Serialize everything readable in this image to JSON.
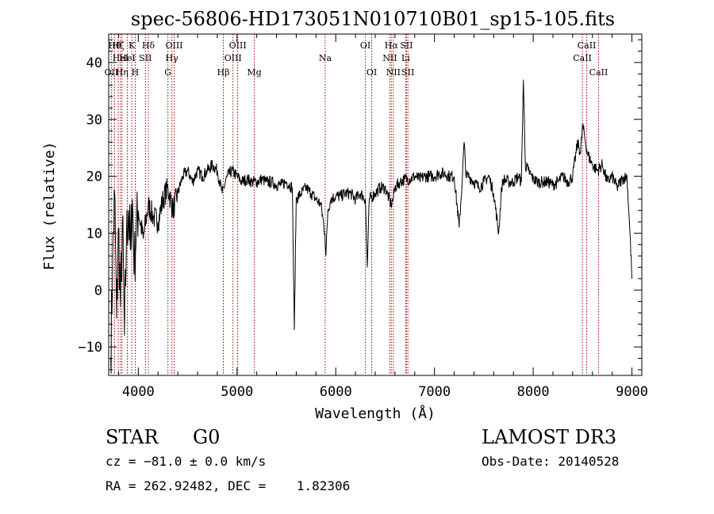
{
  "chart_data": {
    "type": "line",
    "title": "spec-56806-HD173051N010710B01_sp15-105.fits",
    "xlabel": "Wavelength (Å)",
    "ylabel": "Flux (relative)",
    "xlim": [
      3700,
      9100
    ],
    "ylim": [
      -15,
      45
    ],
    "xticks": [
      4000,
      5000,
      6000,
      7000,
      8000,
      9000
    ],
    "yticks": [
      -10,
      0,
      10,
      20,
      30,
      40
    ],
    "grid": false,
    "series": [
      {
        "name": "flux",
        "points": [
          [
            3720,
            -12
          ],
          [
            3740,
            5
          ],
          [
            3760,
            17
          ],
          [
            3780,
            -5
          ],
          [
            3800,
            11
          ],
          [
            3820,
            -3
          ],
          [
            3840,
            12
          ],
          [
            3860,
            -8
          ],
          [
            3880,
            9
          ],
          [
            3900,
            14
          ],
          [
            3920,
            7
          ],
          [
            3940,
            16
          ],
          [
            3960,
            4
          ],
          [
            3980,
            11
          ],
          [
            4000,
            14
          ],
          [
            4050,
            9
          ],
          [
            4100,
            15
          ],
          [
            4150,
            13
          ],
          [
            4200,
            12
          ],
          [
            4250,
            16
          ],
          [
            4300,
            18
          ],
          [
            4350,
            14
          ],
          [
            4400,
            17
          ],
          [
            4450,
            20
          ],
          [
            4500,
            21
          ],
          [
            4550,
            19
          ],
          [
            4600,
            21
          ],
          [
            4650,
            20
          ],
          [
            4700,
            21
          ],
          [
            4750,
            22
          ],
          [
            4800,
            21
          ],
          [
            4850,
            17
          ],
          [
            4900,
            20
          ],
          [
            4950,
            21
          ],
          [
            5000,
            20
          ],
          [
            5050,
            19
          ],
          [
            5100,
            19.5
          ],
          [
            5150,
            19
          ],
          [
            5200,
            19
          ],
          [
            5250,
            19.5
          ],
          [
            5300,
            19
          ],
          [
            5350,
            19
          ],
          [
            5400,
            18.5
          ],
          [
            5450,
            18.5
          ],
          [
            5500,
            19
          ],
          [
            5560,
            18
          ],
          [
            5580,
            -7
          ],
          [
            5600,
            16
          ],
          [
            5650,
            17
          ],
          [
            5700,
            18
          ],
          [
            5750,
            17
          ],
          [
            5800,
            16
          ],
          [
            5850,
            15
          ],
          [
            5890,
            10
          ],
          [
            5900,
            6
          ],
          [
            5920,
            14
          ],
          [
            5950,
            16
          ],
          [
            6000,
            16.5
          ],
          [
            6050,
            16.5
          ],
          [
            6100,
            17
          ],
          [
            6150,
            17
          ],
          [
            6200,
            16
          ],
          [
            6250,
            17
          ],
          [
            6300,
            16
          ],
          [
            6320,
            4
          ],
          [
            6340,
            16
          ],
          [
            6400,
            17
          ],
          [
            6450,
            18
          ],
          [
            6500,
            18
          ],
          [
            6560,
            15
          ],
          [
            6580,
            16
          ],
          [
            6600,
            18
          ],
          [
            6650,
            19
          ],
          [
            6700,
            19.5
          ],
          [
            6750,
            19.5
          ],
          [
            6800,
            20
          ],
          [
            6850,
            19.5
          ],
          [
            6900,
            20
          ],
          [
            6950,
            20
          ],
          [
            7000,
            20
          ],
          [
            7050,
            20.5
          ],
          [
            7100,
            20.5
          ],
          [
            7150,
            20
          ],
          [
            7200,
            20
          ],
          [
            7250,
            11
          ],
          [
            7280,
            19
          ],
          [
            7300,
            26
          ],
          [
            7320,
            20
          ],
          [
            7350,
            20
          ],
          [
            7400,
            19
          ],
          [
            7450,
            18
          ],
          [
            7500,
            19
          ],
          [
            7550,
            20
          ],
          [
            7600,
            17
          ],
          [
            7650,
            10
          ],
          [
            7680,
            18
          ],
          [
            7700,
            19.5
          ],
          [
            7750,
            19
          ],
          [
            7800,
            19
          ],
          [
            7850,
            20
          ],
          [
            7880,
            19
          ],
          [
            7900,
            37
          ],
          [
            7920,
            22
          ],
          [
            7950,
            21
          ],
          [
            8000,
            19.5
          ],
          [
            8050,
            19
          ],
          [
            8100,
            19
          ],
          [
            8150,
            19
          ],
          [
            8200,
            18.5
          ],
          [
            8250,
            19
          ],
          [
            8300,
            20
          ],
          [
            8350,
            19
          ],
          [
            8400,
            20
          ],
          [
            8450,
            26
          ],
          [
            8480,
            24
          ],
          [
            8500,
            29
          ],
          [
            8520,
            27
          ],
          [
            8550,
            24
          ],
          [
            8600,
            22
          ],
          [
            8650,
            21
          ],
          [
            8700,
            22
          ],
          [
            8750,
            19
          ],
          [
            8800,
            20
          ],
          [
            8850,
            18
          ],
          [
            8900,
            19.5
          ],
          [
            8950,
            20
          ],
          [
            8980,
            10
          ],
          [
            9000,
            2
          ]
        ]
      }
    ],
    "lines": [
      {
        "wavelength": 3727,
        "label": "OII",
        "row": 3
      },
      {
        "wavelength": 3760,
        "label": "Hθ",
        "row": 1
      },
      {
        "wavelength": 3797,
        "label": "Hζ",
        "row": 1
      },
      {
        "wavelength": 3820,
        "label": "HeI",
        "row": 2
      },
      {
        "wavelength": 3835,
        "label": "Hη",
        "row": 3
      },
      {
        "wavelength": 3889,
        "label": "HeI",
        "row": 2
      },
      {
        "wavelength": 3934,
        "label": "K",
        "row": 1
      },
      {
        "wavelength": 3969,
        "label": "H",
        "row": 3
      },
      {
        "wavelength": 4072,
        "label": "SII",
        "row": 2
      },
      {
        "wavelength": 4102,
        "label": "Hδ",
        "row": 1
      },
      {
        "wavelength": 4300,
        "label": "G",
        "row": 3
      },
      {
        "wavelength": 4340,
        "label": "Hγ",
        "row": 2
      },
      {
        "wavelength": 4363,
        "label": "OIII",
        "row": 1
      },
      {
        "wavelength": 4861,
        "label": "Hβ",
        "row": 3
      },
      {
        "wavelength": 4959,
        "label": "OIII",
        "row": 2
      },
      {
        "wavelength": 5007,
        "label": "OIII",
        "row": 1
      },
      {
        "wavelength": 5175,
        "label": "Mg",
        "row": 3
      },
      {
        "wavelength": 5893,
        "label": "Na",
        "row": 2
      },
      {
        "wavelength": 6300,
        "label": "OI",
        "row": 1
      },
      {
        "wavelength": 6364,
        "label": "OI",
        "row": 3
      },
      {
        "wavelength": 6548,
        "label": "NII",
        "row": 2
      },
      {
        "wavelength": 6563,
        "label": "Hα",
        "row": 1
      },
      {
        "wavelength": 6583,
        "label": "NII",
        "row": 3
      },
      {
        "wavelength": 6708,
        "label": "Li",
        "row": 2
      },
      {
        "wavelength": 6716,
        "label": "SII",
        "row": 1
      },
      {
        "wavelength": 6731,
        "label": "SII",
        "row": 3
      },
      {
        "wavelength": 8498,
        "label": "CaII",
        "row": 2
      },
      {
        "wavelength": 8542,
        "label": "CaII",
        "row": 1
      },
      {
        "wavelength": 8662,
        "label": "CaII",
        "row": 3
      }
    ]
  },
  "info": {
    "object_class": "STAR",
    "subclass": "G0",
    "survey": "LAMOST DR3",
    "redshift": "cz = −81.0 ± 0.0 km/s",
    "obs_date": "Obs-Date: 20140528",
    "coords": "RA = 262.92482, DEC =    1.82306"
  },
  "colors": {
    "axes": "#000000",
    "spectrum": "#000000",
    "line_markers": "#a60000"
  }
}
